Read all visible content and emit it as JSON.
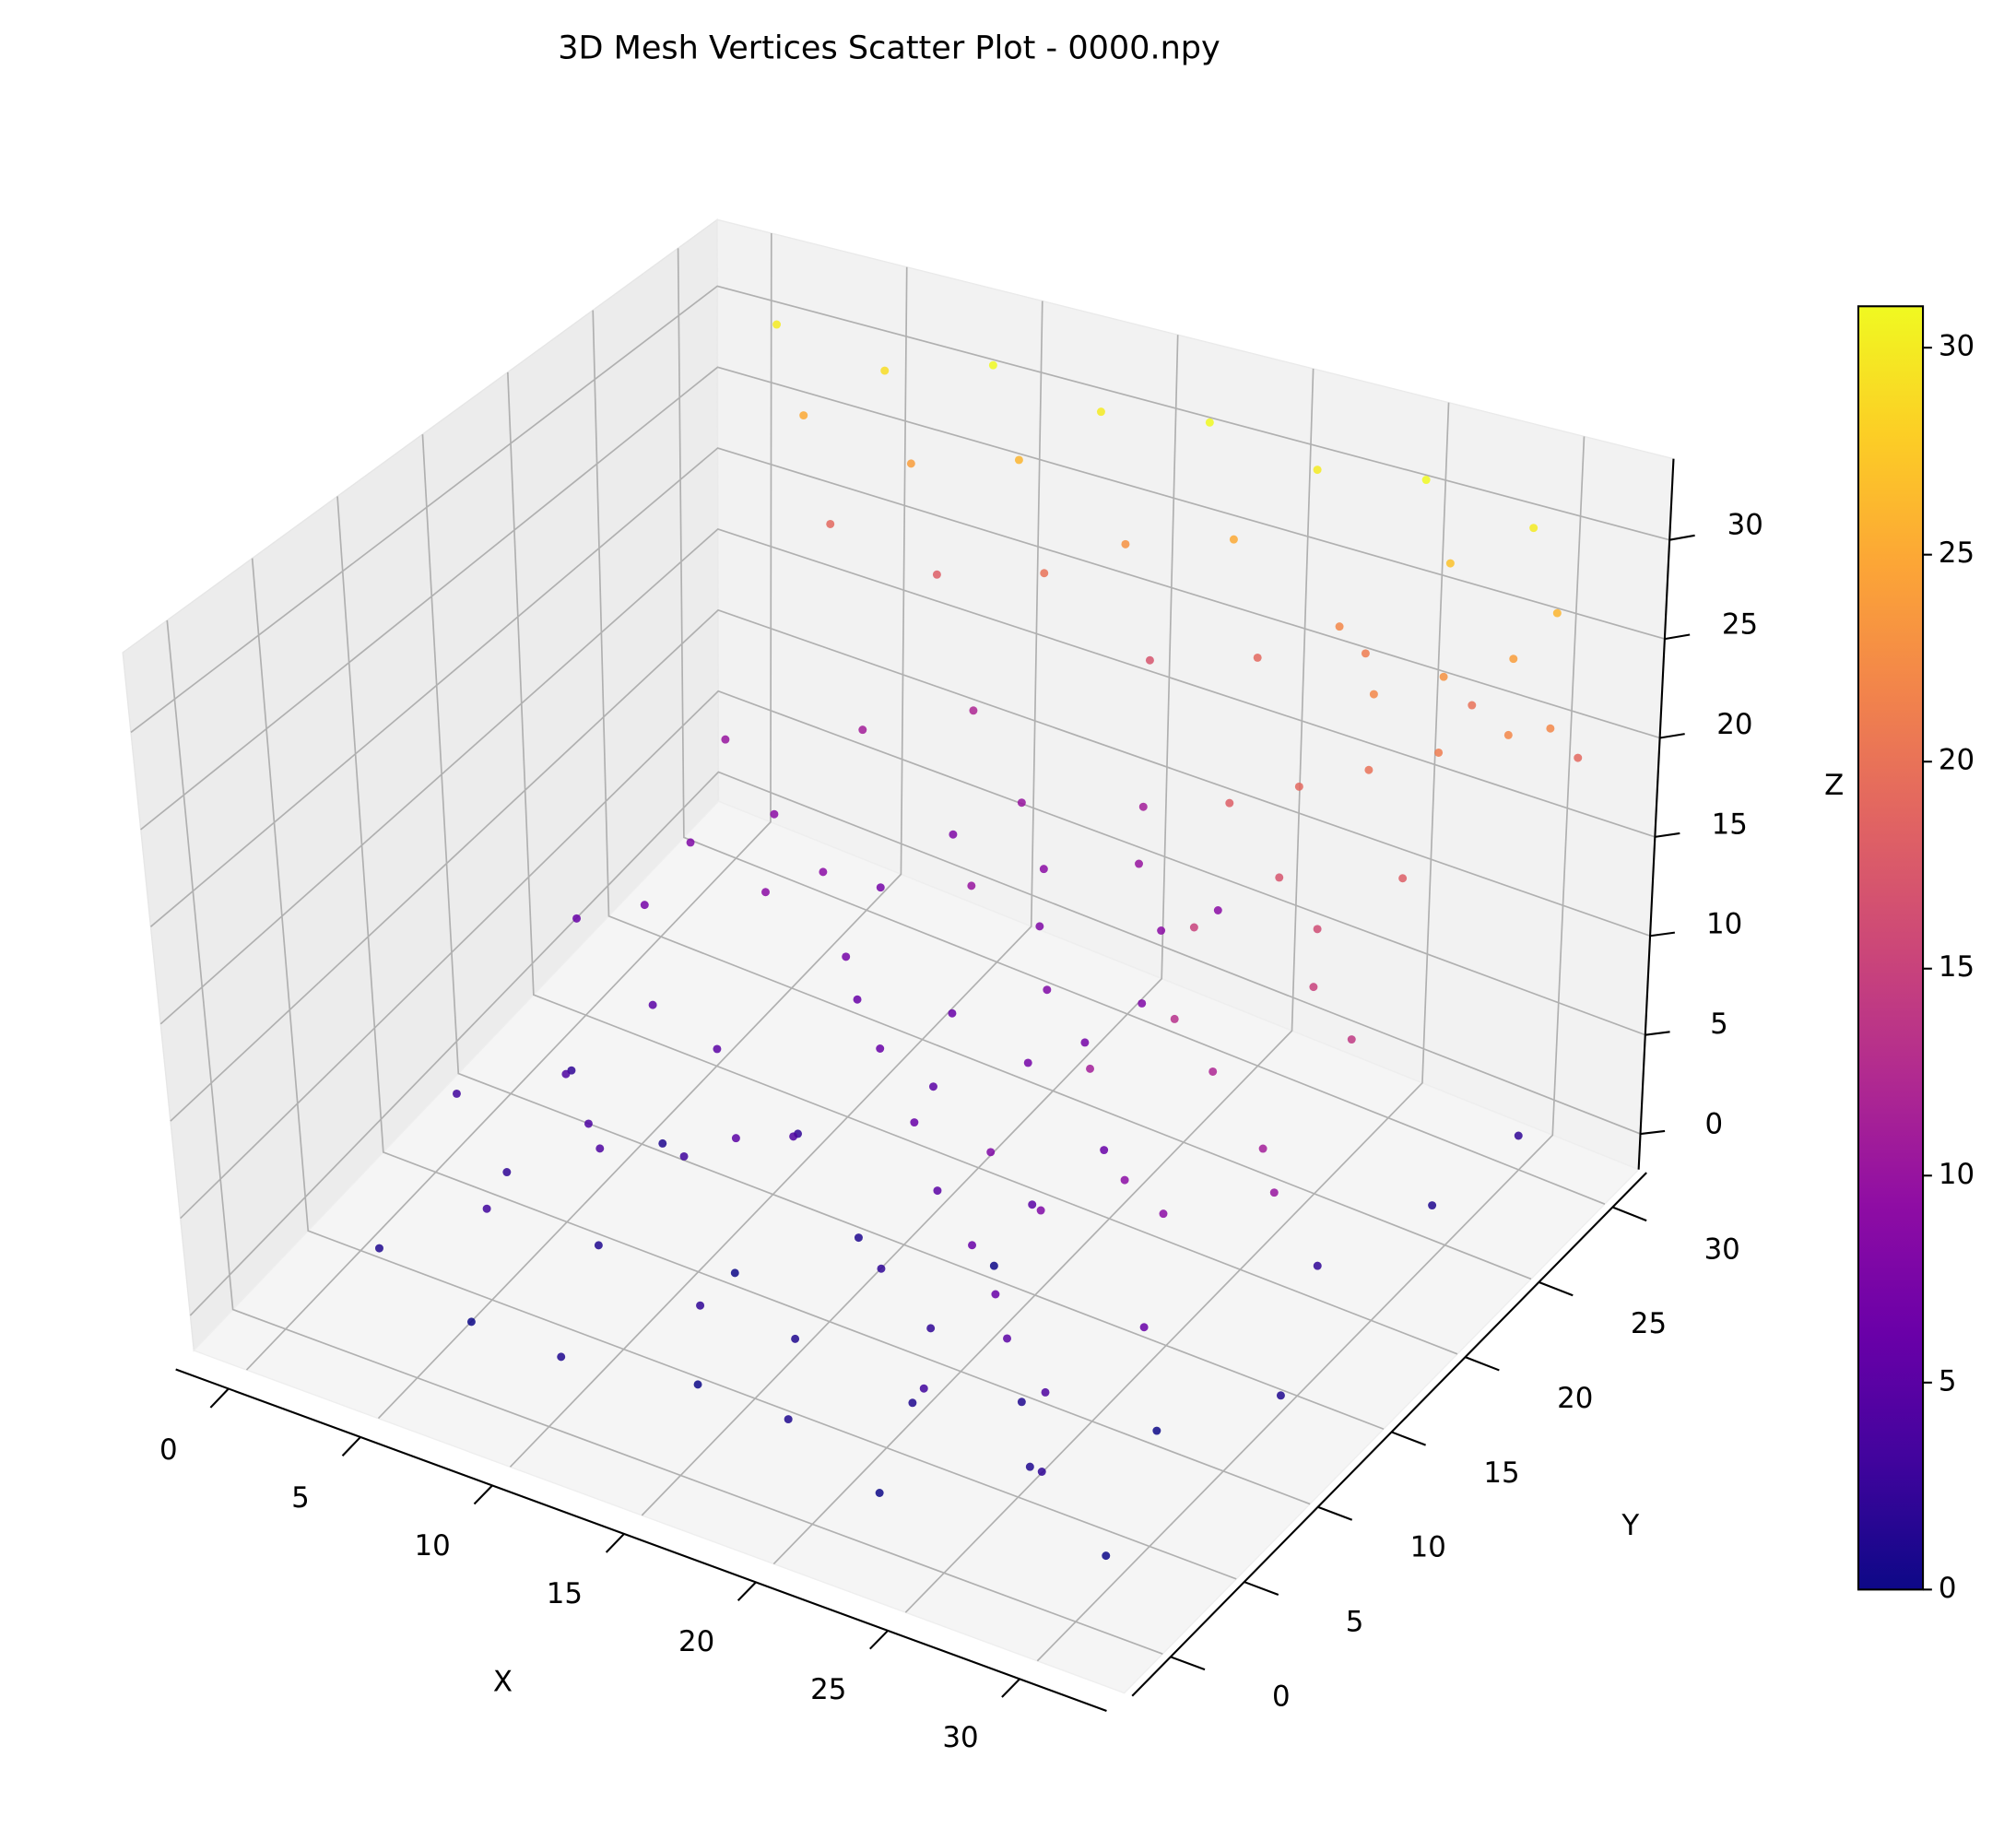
{
  "chart_data": {
    "type": "scatter3d",
    "title": "3D Mesh Vertices Scatter Plot - 0000.npy",
    "xlabel": "X",
    "ylabel": "Y",
    "zlabel": "Z",
    "colormap": "plasma",
    "grid": true,
    "x": [
      2,
      6,
      10,
      14,
      18,
      22,
      26,
      30,
      4,
      8,
      12,
      16,
      20,
      24,
      28,
      31,
      3,
      7,
      11,
      15,
      19,
      29,
      30,
      31,
      27,
      21,
      13,
      5,
      9,
      17,
      1,
      3,
      5,
      7,
      9,
      11,
      13,
      15,
      17,
      19,
      2,
      4,
      6,
      8,
      10,
      12,
      14,
      16,
      18,
      20,
      22,
      6,
      10,
      14,
      8,
      12,
      16,
      18,
      20,
      3,
      5,
      11,
      13,
      15,
      7,
      17,
      19,
      21,
      1,
      9,
      22,
      24,
      26,
      28,
      23,
      25,
      27,
      29,
      22,
      24,
      26,
      28,
      30,
      23,
      25,
      27,
      29,
      24,
      26,
      28,
      30,
      22,
      25,
      27,
      29,
      31,
      21,
      20,
      23,
      30,
      1,
      5,
      9,
      13,
      17,
      21,
      25,
      29,
      2,
      6,
      10,
      14,
      18,
      22,
      26,
      30,
      3,
      7,
      11,
      15,
      19,
      23,
      27,
      31
    ],
    "y": [
      3,
      2,
      1,
      3,
      2,
      1,
      4,
      2,
      8,
      7,
      9,
      6,
      8,
      7,
      9,
      12,
      14,
      13,
      15,
      12,
      14,
      18,
      24,
      28,
      3,
      5,
      5,
      5,
      11,
      10,
      18,
      22,
      16,
      20,
      24,
      19,
      23,
      17,
      21,
      25,
      26,
      12,
      28,
      15,
      27,
      13,
      26,
      14,
      18,
      22,
      16,
      10,
      20,
      20,
      22,
      28,
      29,
      12,
      27,
      19,
      24,
      11,
      17,
      24,
      9,
      27,
      20,
      13,
      10,
      30,
      4,
      6,
      5,
      8,
      10,
      12,
      11,
      14,
      15,
      17,
      16,
      19,
      18,
      20,
      22,
      21,
      23,
      25,
      26,
      27,
      28,
      24,
      28,
      29,
      30,
      29,
      9,
      12,
      7,
      13,
      31,
      31,
      31,
      31,
      31,
      31,
      31,
      31,
      31,
      31,
      31,
      31,
      31,
      31,
      31,
      31,
      31,
      31,
      31,
      31,
      31,
      31,
      31,
      31
    ],
    "z": [
      1,
      0,
      1,
      0,
      1,
      0,
      1,
      0,
      2,
      1,
      0,
      1,
      2,
      1,
      0,
      1,
      2,
      1,
      2,
      1,
      0,
      2,
      1,
      2,
      2,
      1,
      2,
      3,
      3,
      2,
      6,
      8,
      5,
      9,
      7,
      6,
      10,
      5,
      8,
      9,
      10,
      4,
      11,
      5,
      8,
      4,
      9,
      6,
      7,
      8,
      6,
      4,
      7,
      6,
      9,
      10,
      11,
      5,
      9,
      7,
      9,
      5,
      6,
      8,
      4,
      10,
      7,
      5,
      3,
      12,
      3,
      5,
      4,
      6,
      8,
      9,
      9,
      11,
      11,
      13,
      12,
      15,
      14,
      15,
      17,
      16,
      18,
      19,
      20,
      21,
      22,
      18,
      22,
      23,
      24,
      22,
      6,
      8,
      6,
      10,
      30,
      29,
      31,
      30,
      31,
      30,
      31,
      30,
      25,
      24,
      26,
      23,
      25,
      22,
      27,
      26,
      19,
      18,
      20,
      17,
      19,
      21,
      20,
      19
    ],
    "xlim": [
      -2,
      33.3
    ],
    "ylim": [
      -2.6,
      32.3
    ],
    "zlim": [
      -1.8,
      34.1
    ],
    "xticks": [
      0,
      5,
      10,
      15,
      20,
      25,
      30
    ],
    "yticks": [
      0,
      5,
      10,
      15,
      20,
      25,
      30
    ],
    "zticks": [
      0,
      5,
      10,
      15,
      20,
      25,
      30
    ],
    "colorbar": {
      "clim": [
        0,
        31
      ],
      "ticks": [
        0,
        5,
        10,
        15,
        20,
        25,
        30
      ]
    }
  }
}
